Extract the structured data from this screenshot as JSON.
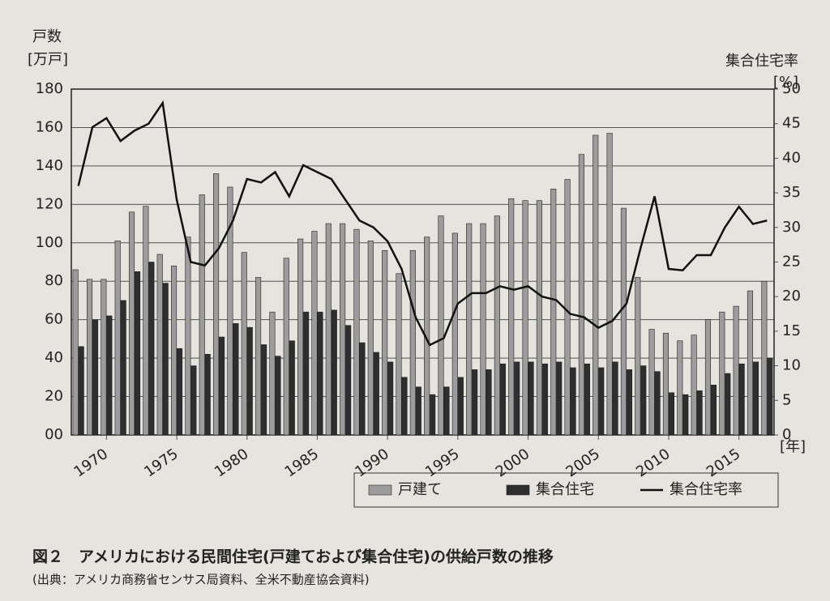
{
  "chart_data": {
    "type": "bar",
    "y_label": "戸数",
    "y_unit": "[万戸]",
    "y2_label": "集合住宅率",
    "y2_unit": "[%]",
    "x_unit": "[年]",
    "caption": "図２　アメリカにおける民間住宅(戸建ておよび集合住宅)の供給戸数の推移",
    "source": "(出典：アメリカ商務省センサス局資料、全米不動産協会資料)",
    "x": [
      1968,
      1969,
      1970,
      1971,
      1972,
      1973,
      1974,
      1975,
      1976,
      1977,
      1978,
      1979,
      1980,
      1981,
      1982,
      1983,
      1984,
      1985,
      1986,
      1987,
      1988,
      1989,
      1990,
      1991,
      1992,
      1993,
      1994,
      1995,
      1996,
      1997,
      1998,
      1999,
      2000,
      2001,
      2002,
      2003,
      2004,
      2005,
      2006,
      2007,
      2008,
      2009,
      2010,
      2011,
      2012,
      2013,
      2014,
      2015,
      2016,
      2017
    ],
    "xlim": [
      1967.5,
      2017.5
    ],
    "xticks": [
      1970,
      1975,
      1980,
      1985,
      1990,
      1995,
      2000,
      2005,
      2010,
      2015
    ],
    "ylim": [
      0,
      180
    ],
    "yticks": [
      {
        "value": 0,
        "label": "00"
      },
      20,
      40,
      60,
      80,
      100,
      120,
      140,
      160,
      180
    ],
    "y2lim": [
      0,
      50
    ],
    "y2ticks": [
      0,
      5,
      10,
      15,
      20,
      25,
      30,
      35,
      40,
      45,
      50
    ],
    "grid": true,
    "series": [
      {
        "name": "戸建て",
        "color": "#9c9c9c",
        "values": [
          86,
          81,
          81,
          101,
          116,
          119,
          94,
          88,
          103,
          125,
          136,
          129,
          95,
          82,
          64,
          92,
          102,
          106,
          110,
          110,
          107,
          101,
          96,
          84,
          96,
          103,
          114,
          105,
          110,
          110,
          114,
          123,
          122,
          122,
          128,
          133,
          146,
          156,
          157,
          118,
          82,
          55,
          53,
          49,
          52,
          60,
          64,
          67,
          75,
          80
        ]
      },
      {
        "name": "集合住宅",
        "color": "#2e2e2e",
        "values": [
          46,
          60,
          62,
          70,
          85,
          90,
          79,
          45,
          36,
          42,
          51,
          58,
          56,
          47,
          41,
          49,
          64,
          64,
          65,
          57,
          48,
          43,
          38,
          30,
          25,
          21,
          25,
          30,
          34,
          34,
          37,
          38,
          38,
          37,
          38,
          35,
          37,
          35,
          38,
          34,
          36,
          33,
          22,
          21,
          23,
          26,
          32,
          37,
          38,
          40
        ]
      },
      {
        "name": "集合住宅率",
        "color": "#111111",
        "type": "line",
        "axis": "y2",
        "values": [
          36,
          44.5,
          45.8,
          42.5,
          44,
          45,
          48,
          34,
          25,
          24.5,
          27,
          31,
          37,
          36.5,
          38,
          34.5,
          39,
          38,
          37,
          34,
          31,
          30,
          28,
          24,
          17,
          13,
          14,
          19,
          20.5,
          20.5,
          21.5,
          21,
          21.5,
          20,
          19.5,
          17.5,
          17,
          15.5,
          16.5,
          19,
          27,
          34.5,
          24,
          23.8,
          26,
          26,
          30,
          33,
          30.5,
          31
        ]
      }
    ]
  }
}
